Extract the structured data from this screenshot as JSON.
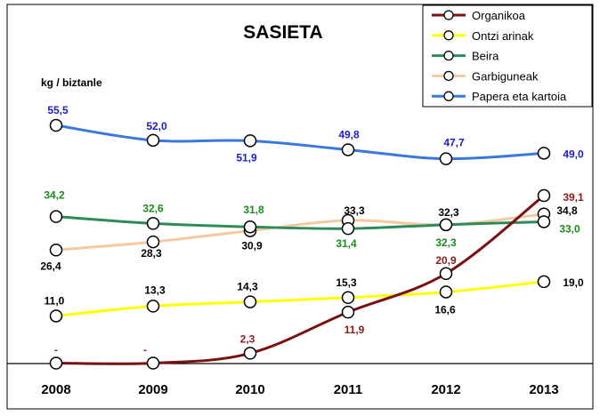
{
  "chart_data": {
    "type": "line",
    "title": "SASIETA",
    "ylabel": "kg / biztanle",
    "xlabel": "",
    "categories": [
      "2008",
      "2009",
      "2010",
      "2011",
      "2012",
      "2013"
    ],
    "ylim": [
      0,
      60
    ],
    "legend_position": "top-right",
    "series": [
      {
        "name": "Organikoa",
        "color": "#7B1010",
        "values": [
          0,
          0,
          2.3,
          11.9,
          20.9,
          39.1
        ],
        "labels": [
          "-",
          "-",
          "2,3",
          "11,9",
          "20,9",
          "39,1"
        ],
        "label_color": "#8B1A1A"
      },
      {
        "name": "Ontzi arinak",
        "color": "#FFFF00",
        "values": [
          11.0,
          13.3,
          14.3,
          15.3,
          16.6,
          19.0
        ],
        "labels": [
          "11,0",
          "13,3",
          "14,3",
          "15,3",
          "16,6",
          "19,0"
        ],
        "label_color": "#000000"
      },
      {
        "name": "Beira",
        "color": "#2E8B57",
        "values": [
          34.2,
          32.6,
          31.8,
          31.4,
          32.3,
          33.0
        ],
        "labels": [
          "34,2",
          "32,6",
          "31,8",
          "31,4",
          "32,3",
          "33,0"
        ],
        "label_color": "#1E8A1E"
      },
      {
        "name": "Garbiguneak",
        "color": "#F5C8A0",
        "values": [
          26.4,
          28.3,
          30.9,
          33.3,
          32.3,
          34.8
        ],
        "labels": [
          "26,4",
          "28,3",
          "30,9",
          "33,3",
          "32,3",
          "34,8"
        ],
        "label_color": "#000000"
      },
      {
        "name": "Papera eta kartoia",
        "color": "#3A78DC",
        "values": [
          55.5,
          52.0,
          51.9,
          49.8,
          47.7,
          49.0
        ],
        "labels": [
          "55,5",
          "52,0",
          "51,9",
          "49,8",
          "47,7",
          "49,0"
        ],
        "label_color": "#1C1CC8"
      }
    ]
  }
}
